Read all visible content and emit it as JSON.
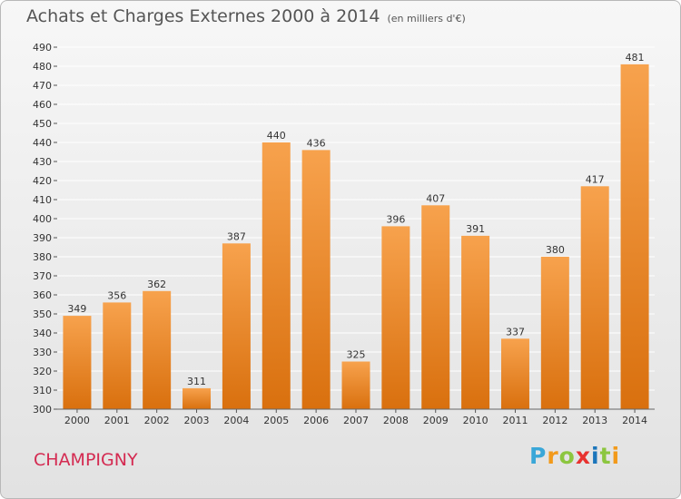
{
  "header": {
    "title": "Achats et Charges Externes 2000 à 2014",
    "subtitle": "(en milliers d'€)"
  },
  "footer": {
    "city": "CHAMPIGNY",
    "logo_letters": [
      "P",
      "r",
      "o",
      "x",
      "i",
      "t",
      "i"
    ],
    "logo_colors": [
      "#3aa7d8",
      "#f29a1b",
      "#8cc63f",
      "#e8322f",
      "#1b75bb",
      "#8cc63f",
      "#f29a1b"
    ]
  },
  "colors": {
    "bar_light": "#f7a24d",
    "bar_dark": "#d9700e",
    "grid": "#ffffff",
    "axis_text": "#333333"
  },
  "chart_data": {
    "type": "bar",
    "title": "Achats et Charges Externes 2000 à 2014",
    "subtitle": "(en milliers d'€)",
    "categories": [
      "2000",
      "2001",
      "2002",
      "2003",
      "2004",
      "2005",
      "2006",
      "2007",
      "2008",
      "2009",
      "2010",
      "2011",
      "2012",
      "2013",
      "2014"
    ],
    "values": [
      349,
      356,
      362,
      311,
      387,
      440,
      436,
      325,
      396,
      407,
      391,
      337,
      380,
      417,
      481
    ],
    "ylim": [
      300,
      490
    ],
    "ytick_step": 10,
    "grid": true,
    "data_labels": true
  }
}
